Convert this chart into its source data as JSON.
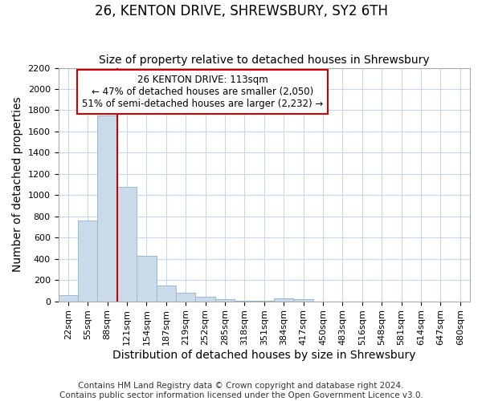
{
  "title": "26, KENTON DRIVE, SHREWSBURY, SY2 6TH",
  "subtitle": "Size of property relative to detached houses in Shrewsbury",
  "xlabel": "Distribution of detached houses by size in Shrewsbury",
  "ylabel": "Number of detached properties",
  "footer_line1": "Contains HM Land Registry data © Crown copyright and database right 2024.",
  "footer_line2": "Contains public sector information licensed under the Open Government Licence v3.0.",
  "bin_labels": [
    "22sqm",
    "55sqm",
    "88sqm",
    "121sqm",
    "154sqm",
    "187sqm",
    "219sqm",
    "252sqm",
    "285sqm",
    "318sqm",
    "351sqm",
    "384sqm",
    "417sqm",
    "450sqm",
    "483sqm",
    "516sqm",
    "548sqm",
    "581sqm",
    "614sqm",
    "647sqm",
    "680sqm"
  ],
  "bar_heights": [
    60,
    760,
    1750,
    1075,
    430,
    150,
    80,
    45,
    20,
    5,
    5,
    25,
    20,
    0,
    0,
    0,
    0,
    0,
    0,
    0,
    0
  ],
  "bar_color": "#c9daea",
  "bar_edge_color": "#9ab8d0",
  "vline_color": "#cc0000",
  "vline_bin_index": 3,
  "annotation_text": "26 KENTON DRIVE: 113sqm\n← 47% of detached houses are smaller (2,050)\n51% of semi-detached houses are larger (2,232) →",
  "annotation_box_color": "#cc0000",
  "ylim": [
    0,
    2200
  ],
  "yticks": [
    0,
    200,
    400,
    600,
    800,
    1000,
    1200,
    1400,
    1600,
    1800,
    2000,
    2200
  ],
  "bg_color": "#ffffff",
  "grid_color": "#c8d8e8",
  "title_fontsize": 12,
  "subtitle_fontsize": 10,
  "axis_label_fontsize": 10,
  "tick_fontsize": 8,
  "footer_fontsize": 7.5,
  "annotation_fontsize": 8.5
}
